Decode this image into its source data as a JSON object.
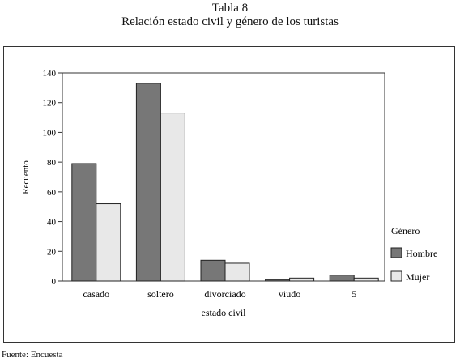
{
  "header": {
    "table_number": "Tabla 8",
    "title": "Relación estado civil y género de los turistas"
  },
  "footer": {
    "source": "Fuente: Encuesta"
  },
  "colors": {
    "hombre": "#777777",
    "mujer": "#e8e8e8"
  },
  "chart_data": {
    "type": "bar",
    "categories": [
      "casado",
      "soltero",
      "divorciado",
      "viudo",
      "5"
    ],
    "series": [
      {
        "name": "Hombre",
        "values": [
          79,
          133,
          14,
          1,
          4
        ]
      },
      {
        "name": "Mujer",
        "values": [
          52,
          113,
          12,
          2,
          2
        ]
      }
    ],
    "xlabel": "estado civil",
    "ylabel": "Recuento",
    "ylim": [
      0,
      140
    ],
    "yticks": [
      0,
      20,
      40,
      60,
      80,
      100,
      120,
      140
    ],
    "legend_title": "Género",
    "legend_position": "right",
    "grid": false
  }
}
